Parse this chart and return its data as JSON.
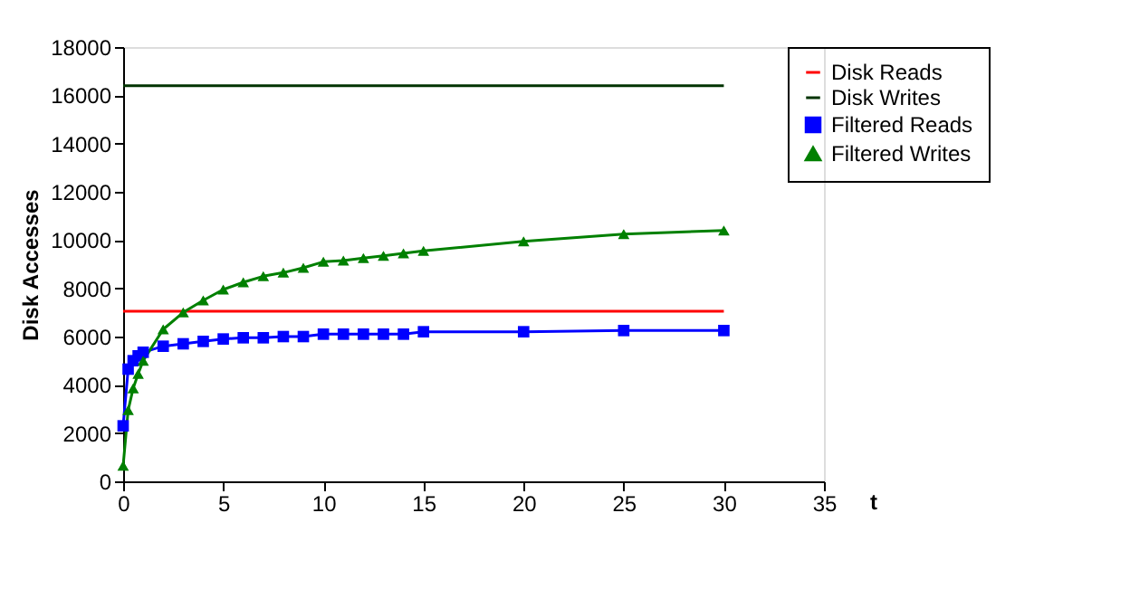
{
  "chart_data": {
    "type": "line",
    "xlabel": "t",
    "ylabel": "Disk Accesses",
    "xlim": [
      0,
      35
    ],
    "xticks": [
      0,
      5,
      10,
      15,
      20,
      25,
      30,
      35
    ],
    "ylim": [
      0,
      18000
    ],
    "yticks": [
      0,
      2000,
      4000,
      6000,
      8000,
      10000,
      12000,
      14000,
      16000,
      18000
    ],
    "grid": false,
    "legend": "right",
    "series": [
      {
        "name": "Disk Reads",
        "color": "#ff0000",
        "marker": "none",
        "x": [
          0,
          30
        ],
        "values": [
          7050,
          7050
        ]
      },
      {
        "name": "Disk Writes",
        "color": "#003300",
        "marker": "none",
        "x": [
          0,
          30
        ],
        "values": [
          16400,
          16400
        ]
      },
      {
        "name": "Filtered Reads",
        "color": "#0000ff",
        "marker": "square",
        "x": [
          0,
          0.25,
          0.5,
          0.75,
          1,
          2,
          3,
          4,
          5,
          6,
          7,
          8,
          9,
          10,
          11,
          12,
          13,
          14,
          15,
          20,
          25,
          30
        ],
        "values": [
          2300,
          4650,
          5000,
          5200,
          5350,
          5600,
          5700,
          5800,
          5900,
          5950,
          5950,
          6000,
          6000,
          6100,
          6100,
          6100,
          6100,
          6100,
          6200,
          6200,
          6250,
          6250
        ]
      },
      {
        "name": "Filtered Writes",
        "color": "#008000",
        "marker": "triangle",
        "x": [
          0,
          0.25,
          0.5,
          0.75,
          1,
          2,
          3,
          4,
          5,
          6,
          7,
          8,
          9,
          10,
          11,
          12,
          13,
          14,
          15,
          20,
          25,
          30
        ],
        "values": [
          650,
          2950,
          3850,
          4450,
          5000,
          6300,
          7000,
          7500,
          7950,
          8250,
          8500,
          8650,
          8850,
          9100,
          9150,
          9250,
          9350,
          9450,
          9550,
          9950,
          10250,
          10400
        ]
      }
    ]
  }
}
